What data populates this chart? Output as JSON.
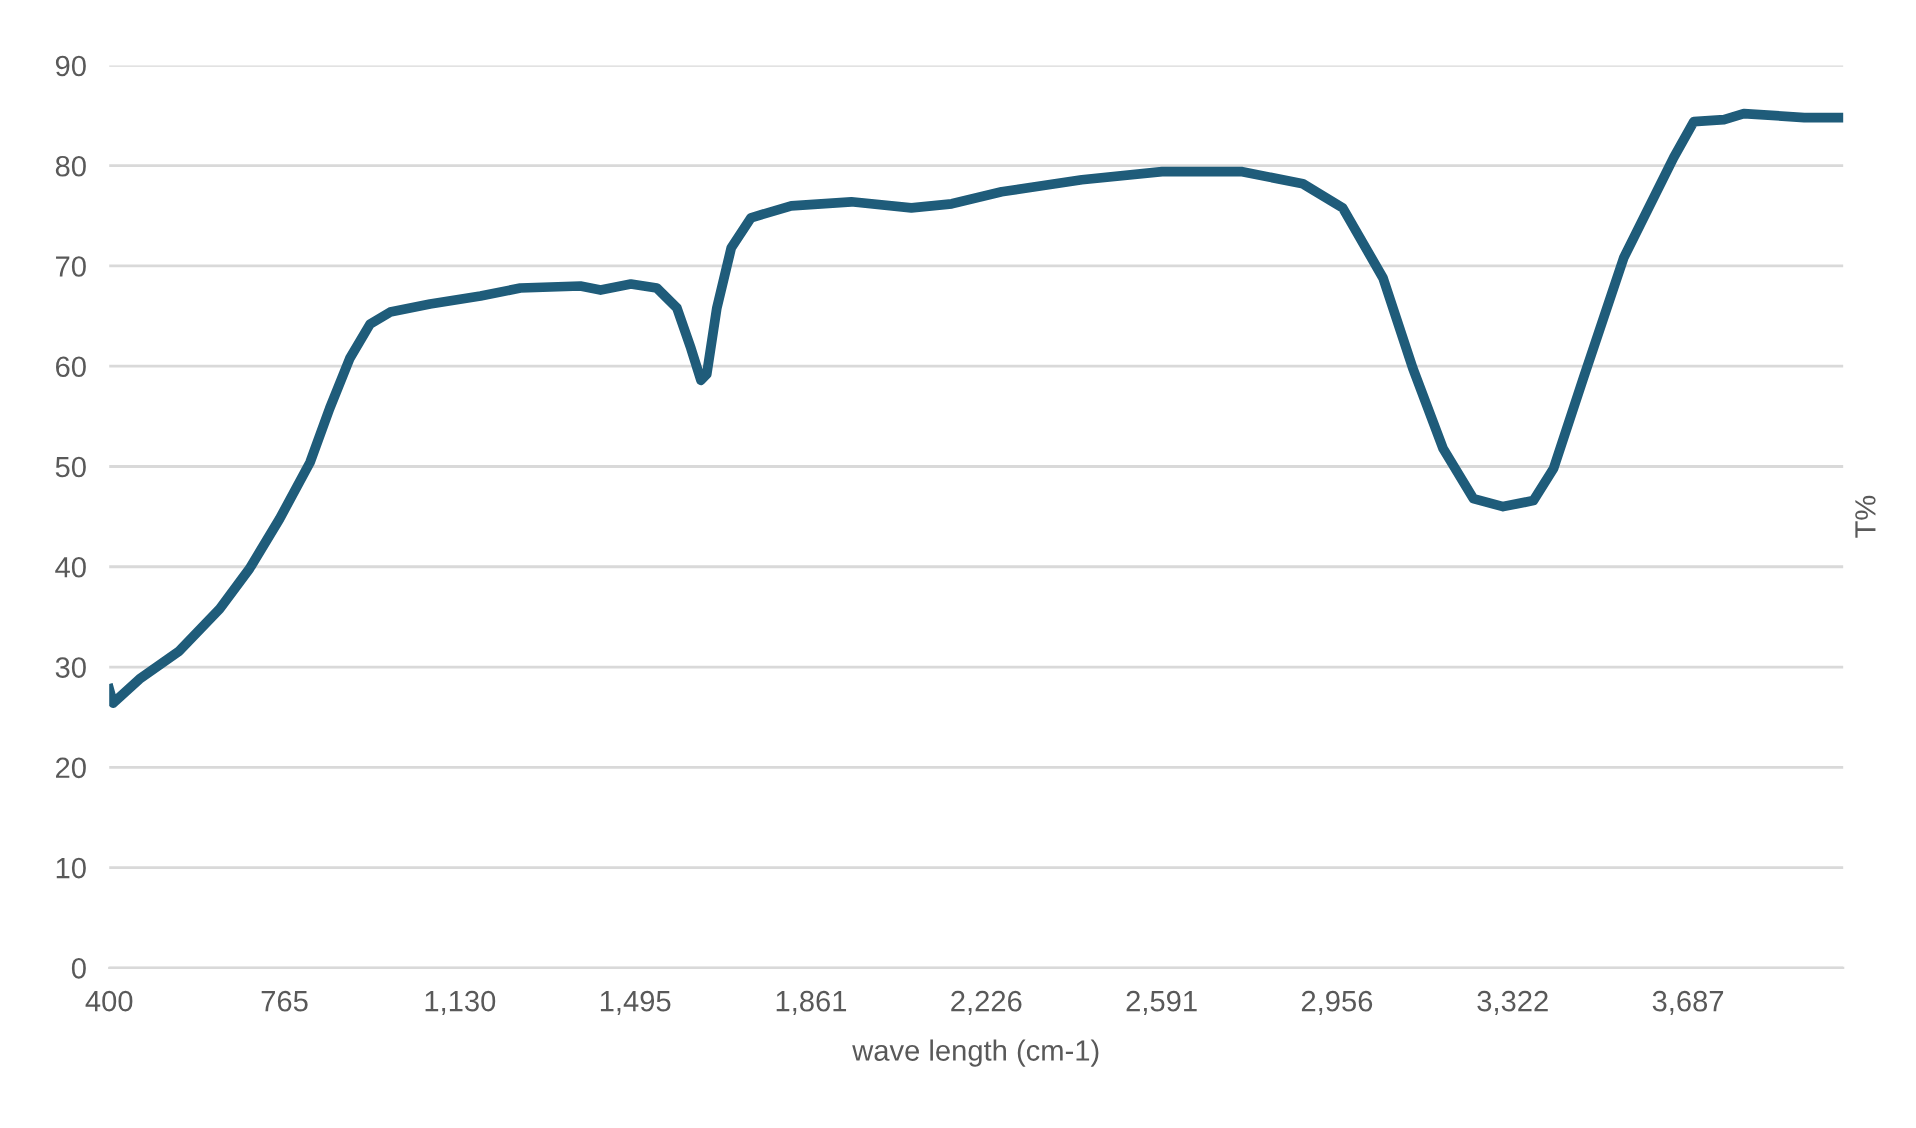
{
  "chart_data": {
    "type": "line",
    "xlabel": "wave length (cm-1)",
    "ylabel": "T%",
    "x": [
      400,
      408,
      463,
      546,
      630,
      692,
      755,
      818,
      859,
      901,
      943,
      985,
      1068,
      1173,
      1256,
      1381,
      1423,
      1486,
      1540,
      1582,
      1611,
      1632,
      1644,
      1665,
      1695,
      1736,
      1820,
      1945,
      2070,
      2154,
      2258,
      2425,
      2592,
      2759,
      2885,
      2968,
      3052,
      3114,
      3177,
      3240,
      3302,
      3365,
      3407,
      3469,
      3553,
      3657,
      3699,
      3762,
      3803,
      3929,
      4010
    ],
    "series": [
      {
        "color": "#1f5c7a",
        "values": [
          27.8,
          26.4,
          28.8,
          31.6,
          35.8,
          39.8,
          44.8,
          50.4,
          55.8,
          60.8,
          64.2,
          65.4,
          66.2,
          67,
          67.8,
          68,
          67.6,
          68.2,
          67.8,
          65.8,
          61.8,
          58.6,
          59.2,
          65.8,
          71.8,
          74.8,
          76,
          76.4,
          75.8,
          76.2,
          77.4,
          78.6,
          79.4,
          79.4,
          78.2,
          75.8,
          68.8,
          59.8,
          51.8,
          46.8,
          46,
          46.6,
          49.8,
          58.8,
          70.8,
          80.8,
          84.4,
          84.6,
          85.2,
          84.8,
          84.8
        ]
      }
    ],
    "xlim": [
      400,
      4010
    ],
    "xticks": [
      400,
      765,
      {
        "value": 1130,
        "label": "1,130"
      },
      {
        "value": 1495,
        "label": "1,495"
      },
      {
        "value": 1861,
        "label": "1,861"
      },
      {
        "value": 2226,
        "label": "2,226"
      },
      {
        "value": 2591,
        "label": "2,591"
      },
      {
        "value": 2956,
        "label": "2,956"
      },
      {
        "value": 3322,
        "label": "3,322"
      },
      {
        "value": 3687,
        "label": "3,687"
      }
    ],
    "ylim": [
      0,
      90
    ],
    "yticks": [
      0,
      10,
      20,
      30,
      40,
      50,
      60,
      70,
      80,
      90
    ],
    "grid": "y",
    "legend": false,
    "marker": "none",
    "line_style": "solid"
  }
}
